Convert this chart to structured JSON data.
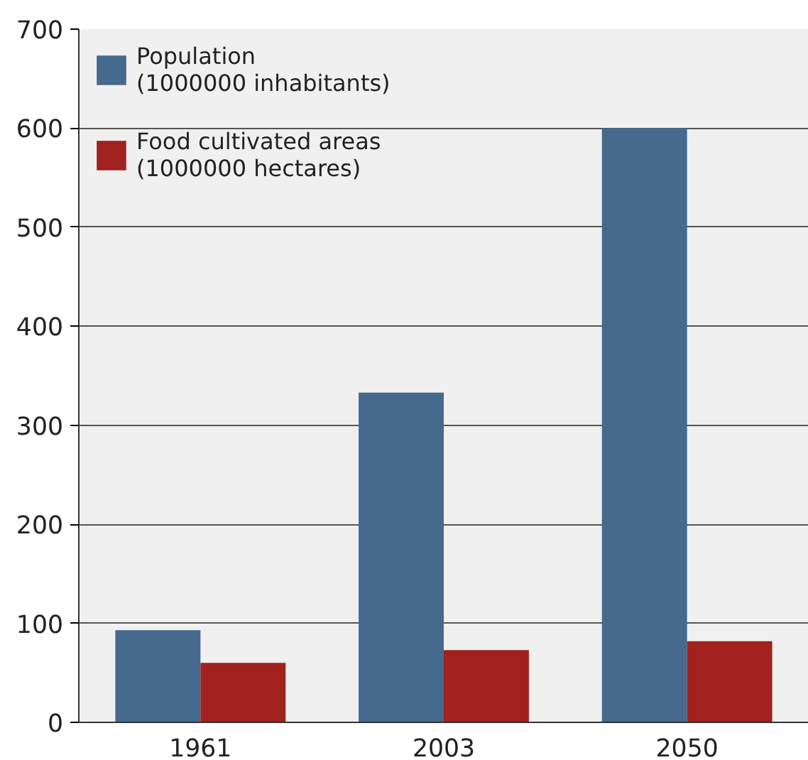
{
  "chart_data": {
    "type": "bar",
    "categories": [
      "1961",
      "2003",
      "2050"
    ],
    "series": [
      {
        "name": "Population\n(1000000 inhabitants)",
        "color": "#456a8d",
        "values": [
          93,
          333,
          600
        ]
      },
      {
        "name": "Food cultivated areas\n(1000000 hectares)",
        "color": "#a0211d",
        "values": [
          60,
          73,
          82
        ]
      }
    ],
    "ylim": [
      0,
      700
    ],
    "yticks": [
      0,
      100,
      200,
      300,
      400,
      500,
      600,
      700
    ],
    "grid": "y",
    "legend": "top left"
  }
}
